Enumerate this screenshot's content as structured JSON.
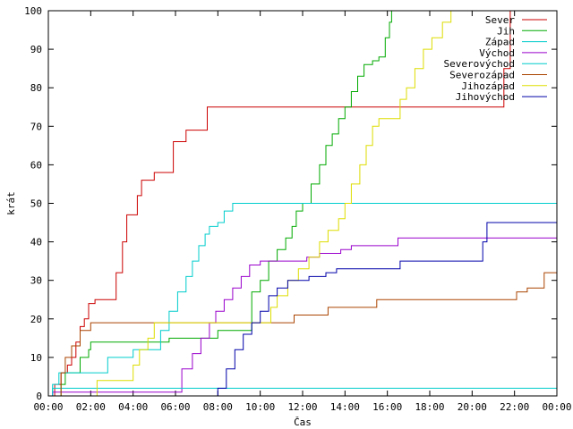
{
  "chart_data": {
    "type": "line",
    "xlabel": "Čas",
    "ylabel": "krát",
    "xlim": [
      0,
      24
    ],
    "ylim": [
      0,
      100
    ],
    "x_ticks": [
      {
        "value": 0,
        "label": "00:00"
      },
      {
        "value": 2,
        "label": "02:00"
      },
      {
        "value": 4,
        "label": "04:00"
      },
      {
        "value": 6,
        "label": "06:00"
      },
      {
        "value": 8,
        "label": "08:00"
      },
      {
        "value": 10,
        "label": "10:00"
      },
      {
        "value": 12,
        "label": "12:00"
      },
      {
        "value": 14,
        "label": "14:00"
      },
      {
        "value": 16,
        "label": "16:00"
      },
      {
        "value": 18,
        "label": "18:00"
      },
      {
        "value": 20,
        "label": "20:00"
      },
      {
        "value": 22,
        "label": "22:00"
      },
      {
        "value": 24,
        "label": "00:00"
      }
    ],
    "y_ticks": [
      {
        "value": 0,
        "label": "0"
      },
      {
        "value": 10,
        "label": "10"
      },
      {
        "value": 20,
        "label": "20"
      },
      {
        "value": 30,
        "label": "30"
      },
      {
        "value": 40,
        "label": "40"
      },
      {
        "value": 50,
        "label": "50"
      },
      {
        "value": 60,
        "label": "60"
      },
      {
        "value": 70,
        "label": "70"
      },
      {
        "value": 80,
        "label": "80"
      },
      {
        "value": 90,
        "label": "90"
      },
      {
        "value": 100,
        "label": "100"
      }
    ],
    "legend_position": "top-right",
    "step": true,
    "series": [
      {
        "name": "Sever",
        "color": "#cc0000",
        "points": [
          [
            0,
            0
          ],
          [
            0.3,
            3
          ],
          [
            0.6,
            6
          ],
          [
            0.8,
            6
          ],
          [
            0.9,
            8
          ],
          [
            1.1,
            10
          ],
          [
            1.3,
            14
          ],
          [
            1.5,
            18
          ],
          [
            1.7,
            20
          ],
          [
            1.9,
            24
          ],
          [
            2.2,
            25
          ],
          [
            2.9,
            25
          ],
          [
            3.2,
            32
          ],
          [
            3.5,
            40
          ],
          [
            3.7,
            47
          ],
          [
            4.1,
            47
          ],
          [
            4.2,
            52
          ],
          [
            4.4,
            56
          ],
          [
            4.8,
            56
          ],
          [
            5.0,
            58
          ],
          [
            5.6,
            58
          ],
          [
            5.9,
            66
          ],
          [
            6.3,
            66
          ],
          [
            6.5,
            69
          ],
          [
            7.3,
            69
          ],
          [
            7.5,
            75
          ],
          [
            21.3,
            75
          ],
          [
            21.5,
            85
          ],
          [
            21.8,
            100
          ],
          [
            24,
            100
          ]
        ]
      },
      {
        "name": "Jih",
        "color": "#00aa00",
        "points": [
          [
            0,
            0
          ],
          [
            0.5,
            0
          ],
          [
            0.6,
            3
          ],
          [
            0.8,
            6
          ],
          [
            1.2,
            6
          ],
          [
            1.5,
            10
          ],
          [
            1.9,
            12
          ],
          [
            2.0,
            14
          ],
          [
            5.6,
            14
          ],
          [
            5.7,
            15
          ],
          [
            7.4,
            15
          ],
          [
            8.0,
            17
          ],
          [
            9.0,
            17
          ],
          [
            9.6,
            27
          ],
          [
            10.0,
            30
          ],
          [
            10.4,
            35
          ],
          [
            10.8,
            38
          ],
          [
            11.2,
            41
          ],
          [
            11.5,
            44
          ],
          [
            11.7,
            48
          ],
          [
            12.0,
            50
          ],
          [
            12.4,
            55
          ],
          [
            12.8,
            60
          ],
          [
            13.1,
            65
          ],
          [
            13.4,
            68
          ],
          [
            13.7,
            72
          ],
          [
            14.0,
            75
          ],
          [
            14.3,
            79
          ],
          [
            14.6,
            83
          ],
          [
            14.9,
            86
          ],
          [
            15.3,
            87
          ],
          [
            15.6,
            88
          ],
          [
            15.9,
            93
          ],
          [
            16.1,
            97
          ],
          [
            16.2,
            100
          ],
          [
            24,
            100
          ]
        ]
      },
      {
        "name": "Západ",
        "color": "#00cccc",
        "points": [
          [
            0,
            0
          ],
          [
            0.2,
            3
          ],
          [
            0.5,
            6
          ],
          [
            2.5,
            6
          ],
          [
            2.8,
            10
          ],
          [
            3.8,
            10
          ],
          [
            4.0,
            12
          ],
          [
            5.1,
            12
          ],
          [
            5.3,
            17
          ],
          [
            5.7,
            22
          ],
          [
            6.1,
            27
          ],
          [
            6.5,
            31
          ],
          [
            6.8,
            35
          ],
          [
            7.1,
            39
          ],
          [
            7.4,
            42
          ],
          [
            7.6,
            44
          ],
          [
            8.0,
            45
          ],
          [
            8.3,
            48
          ],
          [
            8.7,
            50
          ],
          [
            24,
            50
          ]
        ]
      },
      {
        "name": "Východ",
        "color": "#9900cc",
        "points": [
          [
            0,
            0
          ],
          [
            0.2,
            1
          ],
          [
            6.1,
            1
          ],
          [
            6.3,
            7
          ],
          [
            6.8,
            11
          ],
          [
            7.2,
            15
          ],
          [
            7.6,
            19
          ],
          [
            7.9,
            22
          ],
          [
            8.3,
            25
          ],
          [
            8.7,
            28
          ],
          [
            9.1,
            31
          ],
          [
            9.5,
            34
          ],
          [
            10.0,
            35
          ],
          [
            11.8,
            35
          ],
          [
            12.2,
            36
          ],
          [
            12.8,
            37
          ],
          [
            13.8,
            38
          ],
          [
            14.3,
            39
          ],
          [
            16.1,
            39
          ],
          [
            16.5,
            41
          ],
          [
            24,
            41
          ]
        ]
      },
      {
        "name": "Severovýchod",
        "color": "#00cccc",
        "points": [
          [
            0,
            0
          ],
          [
            0.2,
            2
          ],
          [
            2.5,
            2
          ],
          [
            24,
            2
          ]
        ]
      },
      {
        "name": "Severozápad",
        "color": "#aa4400",
        "points": [
          [
            0,
            0
          ],
          [
            0.4,
            0
          ],
          [
            0.6,
            6
          ],
          [
            0.8,
            10
          ],
          [
            1.1,
            13
          ],
          [
            1.5,
            17
          ],
          [
            2.0,
            19
          ],
          [
            9.5,
            19
          ],
          [
            10.2,
            19
          ],
          [
            11.6,
            21
          ],
          [
            13.2,
            23
          ],
          [
            15.5,
            25
          ],
          [
            21.8,
            25
          ],
          [
            22.1,
            27
          ],
          [
            22.6,
            28
          ],
          [
            23.4,
            32
          ],
          [
            24,
            32
          ]
        ]
      },
      {
        "name": "Jihozápad",
        "color": "#dddd00",
        "points": [
          [
            0,
            0
          ],
          [
            2.1,
            0
          ],
          [
            2.3,
            4
          ],
          [
            3.8,
            4
          ],
          [
            4.0,
            8
          ],
          [
            4.3,
            12
          ],
          [
            4.7,
            15
          ],
          [
            5.0,
            19
          ],
          [
            10.3,
            19
          ],
          [
            10.5,
            23
          ],
          [
            10.8,
            26
          ],
          [
            11.3,
            30
          ],
          [
            11.8,
            33
          ],
          [
            12.3,
            36
          ],
          [
            12.8,
            40
          ],
          [
            13.2,
            43
          ],
          [
            13.7,
            46
          ],
          [
            14.0,
            50
          ],
          [
            14.3,
            55
          ],
          [
            14.7,
            60
          ],
          [
            15.0,
            65
          ],
          [
            15.3,
            70
          ],
          [
            15.6,
            72
          ],
          [
            16.3,
            72
          ],
          [
            16.6,
            77
          ],
          [
            16.9,
            80
          ],
          [
            17.3,
            85
          ],
          [
            17.7,
            90
          ],
          [
            18.1,
            93
          ],
          [
            18.6,
            97
          ],
          [
            19.0,
            100
          ],
          [
            24,
            100
          ]
        ]
      },
      {
        "name": "Jihovýchod",
        "color": "#0000aa",
        "points": [
          [
            0,
            0
          ],
          [
            7.8,
            0
          ],
          [
            8.0,
            2
          ],
          [
            8.4,
            7
          ],
          [
            8.8,
            12
          ],
          [
            9.2,
            16
          ],
          [
            9.6,
            19
          ],
          [
            10.0,
            22
          ],
          [
            10.4,
            26
          ],
          [
            10.8,
            28
          ],
          [
            11.3,
            30
          ],
          [
            12.3,
            31
          ],
          [
            13.1,
            32
          ],
          [
            13.6,
            33
          ],
          [
            16.1,
            33
          ],
          [
            16.6,
            35
          ],
          [
            20.2,
            35
          ],
          [
            20.5,
            40
          ],
          [
            20.7,
            45
          ],
          [
            23.9,
            45
          ],
          [
            24,
            47
          ]
        ]
      }
    ]
  }
}
